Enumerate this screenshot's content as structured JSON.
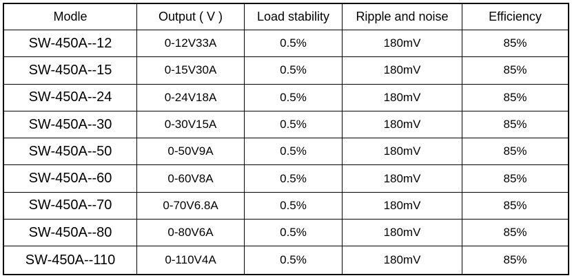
{
  "table": {
    "headers": [
      "Modle",
      "Output ( V )",
      "Load stability",
      "Ripple and noise",
      "Efficiency"
    ],
    "rows": [
      [
        "SW-450A--12",
        "0-12V33A",
        "0.5%",
        "180mV",
        "85%"
      ],
      [
        "SW-450A--15",
        "0-15V30A",
        "0.5%",
        "180mV",
        "85%"
      ],
      [
        "SW-450A--24",
        "0-24V18A",
        "0.5%",
        "180mV",
        "85%"
      ],
      [
        "SW-450A--30",
        "0-30V15A",
        "0.5%",
        "180mV",
        "85%"
      ],
      [
        "SW-450A--50",
        "0-50V9A",
        "0.5%",
        "180mV",
        "85%"
      ],
      [
        "SW-450A--60",
        "0-60V8A",
        "0.5%",
        "180mV",
        "85%"
      ],
      [
        "SW-450A--70",
        "0-70V6.8A",
        "0.5%",
        "180mV",
        "85%"
      ],
      [
        "SW-450A--80",
        "0-80V6A",
        "0.5%",
        "180mV",
        "85%"
      ],
      [
        "SW-450A--110",
        "0-110V4A",
        "0.5%",
        "180mV",
        "85%"
      ]
    ]
  }
}
